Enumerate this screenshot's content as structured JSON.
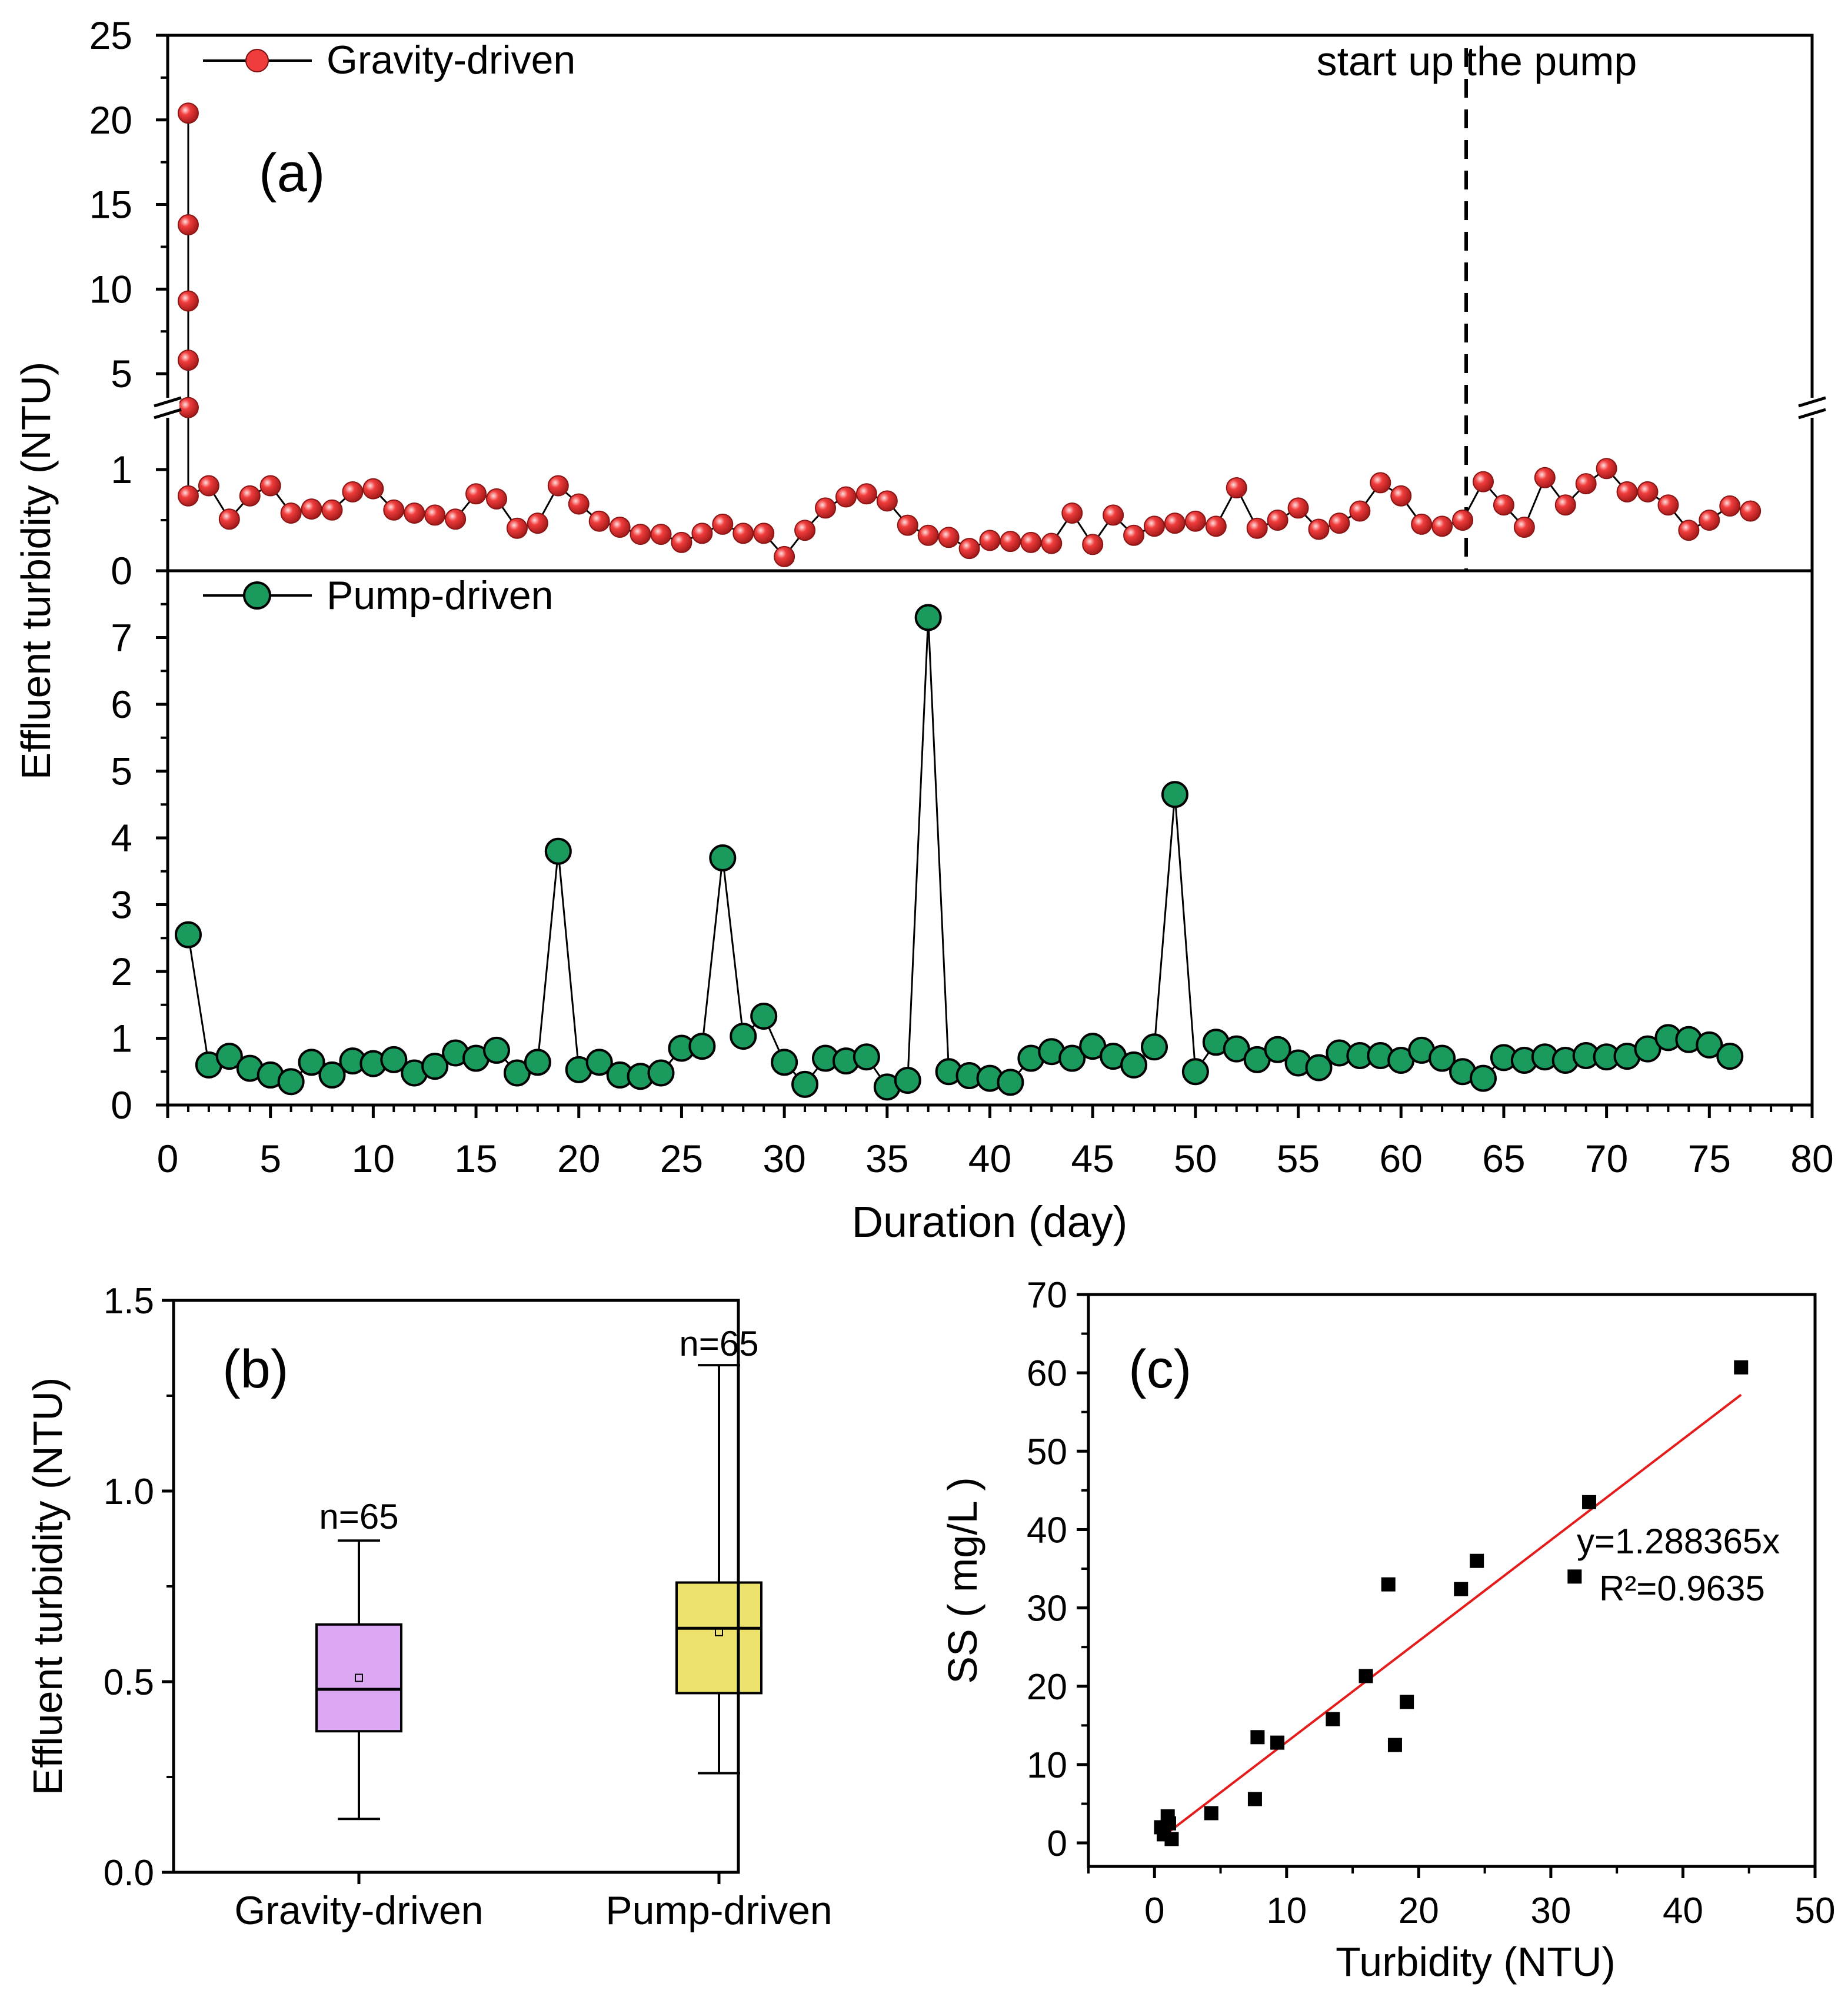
{
  "figure": {
    "panel_a": {
      "label": "(a)",
      "ylabel": "Effluent turbidity (NTU)",
      "xlabel": "Duration (day)",
      "annotation": "start up the pump",
      "xticks": [
        "0",
        "5",
        "10",
        "15",
        "20",
        "25",
        "30",
        "35",
        "40",
        "45",
        "50",
        "55",
        "60",
        "65",
        "70",
        "75",
        "80"
      ],
      "upper_top_ticks": [
        "5",
        "10",
        "15",
        "20",
        "25"
      ],
      "upper_low_ticks": [
        "0",
        "1"
      ],
      "lower_ticks": [
        "0",
        "1",
        "2",
        "3",
        "4",
        "5",
        "6",
        "7"
      ],
      "legend_gravity": "Gravity-driven",
      "legend_pump": "Pump-driven"
    },
    "panel_b": {
      "label": "(b)",
      "ylabel": "Effluent turbidity (NTU)",
      "yticks": [
        "0.0",
        "0.5",
        "1.0",
        "1.5"
      ],
      "cat_gravity": "Gravity-driven",
      "cat_pump": "Pump-driven",
      "n_gravity": "n=65",
      "n_pump": "n=65"
    },
    "panel_c": {
      "label": "(c)",
      "ylabel": "SS ( mg/L )",
      "xlabel": "Turbidity (NTU)",
      "xticks": [
        "0",
        "10",
        "20",
        "30",
        "40",
        "50"
      ],
      "yticks": [
        "0",
        "10",
        "20",
        "30",
        "40",
        "50",
        "60",
        "70"
      ],
      "equation": "y=1.288365x",
      "r2": "R²=0.9635"
    }
  },
  "colors": {
    "gravity_marker": "#f03c3c",
    "pump_marker": "#1a9a5c",
    "box_gravity": "#dca8f4",
    "box_pump": "#ece26c",
    "fit_line": "#e41c1c",
    "scatter": "#000000"
  },
  "chart_data": [
    {
      "type": "line",
      "title": "(a)",
      "xlabel": "Duration (day)",
      "ylabel": "Effluent turbidity (NTU)",
      "xlim": [
        0,
        80
      ],
      "annotation": {
        "text": "start up the pump",
        "x": 63
      },
      "upper_axis": {
        "broken": true,
        "low_range": [
          0,
          1.5
        ],
        "high_range": [
          2.5,
          25
        ]
      },
      "lower_axis": {
        "range": [
          0,
          8
        ]
      },
      "series": [
        {
          "name": "Gravity-driven",
          "x": [
            1,
            1,
            1,
            1,
            1,
            1,
            2,
            3,
            4,
            5,
            6,
            7,
            8,
            9,
            10,
            11,
            12,
            13,
            14,
            15,
            16,
            17,
            18,
            19,
            20,
            21,
            22,
            23,
            24,
            25,
            26,
            27,
            28,
            29,
            30,
            31,
            32,
            33,
            34,
            35,
            36,
            37,
            38,
            39,
            40,
            41,
            42,
            43,
            44,
            45,
            46,
            47,
            48,
            49,
            50,
            51,
            52,
            53,
            54,
            55,
            56,
            57,
            58,
            59,
            60,
            61,
            62,
            63,
            64,
            65,
            66,
            67,
            68,
            69,
            70,
            71,
            72,
            73,
            74,
            75,
            76,
            77
          ],
          "values": [
            20.4,
            13.8,
            9.3,
            5.8,
            3.0,
            0.74,
            0.84,
            0.51,
            0.74,
            0.84,
            0.57,
            0.61,
            0.6,
            0.78,
            0.81,
            0.6,
            0.57,
            0.55,
            0.51,
            0.76,
            0.71,
            0.42,
            0.47,
            0.84,
            0.66,
            0.49,
            0.43,
            0.36,
            0.36,
            0.28,
            0.37,
            0.46,
            0.37,
            0.37,
            0.14,
            0.4,
            0.62,
            0.73,
            0.76,
            0.69,
            0.45,
            0.35,
            0.33,
            0.22,
            0.3,
            0.29,
            0.28,
            0.27,
            0.57,
            0.26,
            0.55,
            0.35,
            0.44,
            0.47,
            0.49,
            0.44,
            0.82,
            0.42,
            0.5,
            0.62,
            0.41,
            0.47,
            0.59,
            0.87,
            0.74,
            0.46,
            0.44,
            0.5,
            0.88,
            0.65,
            0.43,
            0.92,
            0.65,
            0.86,
            1.01,
            0.78,
            0.78,
            0.65,
            0.4,
            0.5,
            0.64,
            0.59
          ]
        },
        {
          "name": "Pump-driven",
          "x": [
            1,
            2,
            3,
            4,
            5,
            6,
            7,
            8,
            9,
            10,
            11,
            12,
            13,
            14,
            15,
            16,
            17,
            18,
            19,
            20,
            21,
            22,
            23,
            24,
            25,
            26,
            27,
            28,
            29,
            30,
            31,
            32,
            33,
            34,
            35,
            36,
            37,
            38,
            39,
            40,
            41,
            42,
            43,
            44,
            45,
            46,
            47,
            48,
            49,
            50,
            51,
            52,
            53,
            54,
            55,
            56,
            57,
            58,
            59,
            60,
            61,
            62,
            63,
            64,
            65,
            66,
            67,
            68,
            69,
            70,
            71,
            72,
            73,
            74,
            75,
            76
          ],
          "values": [
            2.55,
            0.6,
            0.73,
            0.55,
            0.45,
            0.35,
            0.64,
            0.45,
            0.66,
            0.62,
            0.68,
            0.48,
            0.58,
            0.78,
            0.7,
            0.82,
            0.48,
            0.64,
            3.8,
            0.53,
            0.64,
            0.45,
            0.43,
            0.48,
            0.85,
            0.88,
            3.7,
            1.03,
            1.33,
            0.64,
            0.31,
            0.7,
            0.66,
            0.72,
            0.27,
            0.37,
            7.3,
            0.5,
            0.44,
            0.4,
            0.34,
            0.7,
            0.8,
            0.7,
            0.88,
            0.73,
            0.6,
            0.87,
            4.65,
            0.5,
            0.94,
            0.84,
            0.68,
            0.83,
            0.63,
            0.56,
            0.78,
            0.74,
            0.74,
            0.67,
            0.82,
            0.7,
            0.5,
            0.4,
            0.71,
            0.67,
            0.72,
            0.67,
            0.74,
            0.72,
            0.73,
            0.84,
            1.01,
            0.98,
            0.9,
            0.73
          ]
        }
      ]
    },
    {
      "type": "box",
      "title": "(b)",
      "ylabel": "Effluent turbidity (NTU)",
      "ylim": [
        0,
        1.5
      ],
      "categories": [
        "Gravity-driven",
        "Pump-driven"
      ],
      "boxes": [
        {
          "name": "Gravity-driven",
          "min": 0.14,
          "q1": 0.37,
          "median": 0.48,
          "q3": 0.65,
          "max": 0.87,
          "mean": 0.51,
          "n": 65
        },
        {
          "name": "Pump-driven",
          "min": 0.26,
          "q1": 0.47,
          "median": 0.64,
          "q3": 0.76,
          "max": 1.33,
          "mean": 0.63,
          "n": 65
        }
      ]
    },
    {
      "type": "scatter",
      "title": "(c)",
      "xlabel": "Turbidity (NTU)",
      "ylabel": "SS ( mg/L )",
      "xlim": [
        -5,
        50
      ],
      "ylim": [
        -3,
        70
      ],
      "x": [
        0.5,
        0.7,
        1.0,
        1.1,
        1.3,
        4.3,
        7.6,
        7.8,
        9.3,
        13.5,
        16.0,
        17.7,
        18.2,
        19.1,
        23.2,
        24.4,
        31.8,
        32.9,
        44.4
      ],
      "values": [
        2.0,
        1.1,
        3.4,
        2.5,
        0.5,
        3.8,
        5.6,
        13.5,
        12.8,
        15.8,
        21.3,
        33.0,
        12.5,
        18.0,
        32.4,
        36.0,
        34.0,
        43.5,
        60.7
      ],
      "fit": {
        "slope": 1.288365,
        "r2": 0.9635,
        "x_range": [
          0.5,
          44.4
        ]
      }
    }
  ]
}
